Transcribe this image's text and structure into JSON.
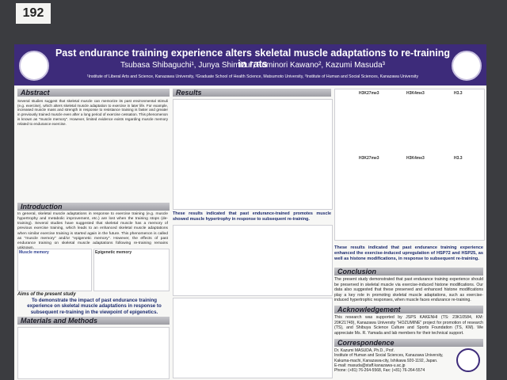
{
  "board_number": "192",
  "header": {
    "title": "Past endurance training experience alters skeletal muscle adaptations to re-training in rats",
    "authors": "Tsubasa Shibaguchi¹, Junya Shimizu², Fuminori Kawano², Kazumi Masuda³",
    "affiliations": "¹Institute of Liberal Arts and Science, Kanazawa University, ²Graduate School of Health Science, Matsumoto University, ³Institute of Human and Social Sciences, Kanazawa University"
  },
  "abstract": {
    "heading": "Abstract",
    "text": "Several studies suggest that skeletal muscle can memorize its past environmental stimuli (e.g. exercise), which alters skeletal muscle adaptation to exercise in later life. For example, increased muscle mass and strength in response to resistance training is faster and greater in previously trained muscle even after a long period of exercise cessation. This phenomenon is known as \"muscle memory\". However, limited evidence exists regarding muscle memory related to endurance exercise."
  },
  "introduction": {
    "heading": "Introduction",
    "text": "In general, skeletal muscle adaptations in response to exercise training (e.g. muscle hypertrophy and metabolic improvement, etc.) are lost when the training stops (de-training). Several studies have suggested that skeletal muscle has a memory of previous exercise training, which leads to an enhanced skeletal muscle adaptations when similar exercise training is started again in the future. This phenomenon is called as \"muscle memory\" and/or \"epigenetic memory\". However, the effects of past endurance training on skeletal muscle adaptations following re-training remains unknown.",
    "figure_labels": [
      "Muscle memory",
      "Epigenetic memory"
    ]
  },
  "aims": {
    "heading": "Aims of the present study",
    "text": "To demonstrate the impact of past endurance training experience on skeletal muscle adaptations in response to subsequent re-training in the viewpoint of epigenetics."
  },
  "methods": {
    "heading": "Materials and Methods"
  },
  "results": {
    "heading": "Results",
    "statement_1": "These results indicated that past endurance-trained promotes muscle showed muscle hypertrophy in response to subsequent re-training.",
    "statement_2": "These results indicated that past endurance training experience enhanced the exercise-induced upregulation of HSP72 and HSP25, as well as histone modifications, in response to subsequent re-training.",
    "panel_labels": [
      "H3K27me3",
      "H3K4me3",
      "H3.3",
      "H3K27me3",
      "H3K4me3",
      "H3.3"
    ]
  },
  "conclusion": {
    "heading": "Conclusion",
    "text": "The present study demonstrated that past endurance training experience should be preserved in skeletal muscle via exercise-induced histone modifications. Our data also suggested that these preserved and enhanced histone modifications play a key role in promoting skeletal muscle adaptations, such as exercise-induced hypertrophic responses, when muscle faces endurance re-training."
  },
  "acknowledgement": {
    "heading": "Acknowledgement",
    "text": "This research was supported by JSPS KAKENHI (TS: 23K10584, KM: 20K21749), Kanazawa University \"HOZUMINE\" project for promotion of research (TS), and Shibuya Science Culture and Sports Foundation (TS, KM). We appreciate Ms. R. Yamada and lab members for their technical support."
  },
  "correspondence": {
    "heading": "Correspondence",
    "lines": [
      "Dr. Kazumi MASUDA, Ph.D., Prof.",
      "Institute of Human and Social Sciences, Kanazawa University, Kakuma-machi, Kanazawa-city, Ishikawa 920-1192, Japan.",
      "E-mail: masuda@staff.kanazawa-u.ac.jp",
      "Phone: (+81) 76-264-5568, Fax: (+81) 76-264-5574"
    ]
  }
}
